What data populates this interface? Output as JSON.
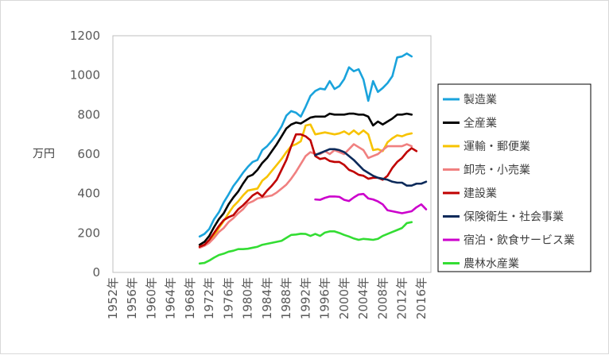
{
  "chart_data": {
    "type": "line",
    "title": "",
    "xlabel": "",
    "ylabel": "万円",
    "ylim": [
      0,
      1200
    ],
    "yticks": [
      0,
      200,
      400,
      600,
      800,
      1000,
      1200
    ],
    "xlim": [
      1952,
      2018
    ],
    "xtick_labels": [
      "1952年",
      "1956年",
      "1960年",
      "1964年",
      "1968年",
      "1972年",
      "1976年",
      "1980年",
      "1984年",
      "1988年",
      "1992年",
      "1996年",
      "2000年",
      "2004年",
      "2008年",
      "2012年",
      "2016年"
    ],
    "grid": false,
    "legend_position": "right",
    "series": [
      {
        "name": "製造業",
        "color": "#1aa3dc",
        "x_start": 1970,
        "values": [
          182,
          195,
          220,
          270,
          305,
          355,
          395,
          438,
          470,
          505,
          535,
          560,
          570,
          620,
          640,
          668,
          700,
          740,
          795,
          818,
          810,
          790,
          840,
          895,
          920,
          932,
          928,
          970,
          930,
          945,
          980,
          1040,
          1020,
          1030,
          978,
          870,
          970,
          915,
          935,
          960,
          995,
          1090,
          1095,
          1110,
          1095
        ]
      },
      {
        "name": "全産業",
        "color": "#000000",
        "x_start": 1970,
        "values": [
          140,
          155,
          185,
          230,
          270,
          300,
          345,
          380,
          410,
          450,
          485,
          495,
          520,
          555,
          580,
          615,
          650,
          690,
          730,
          750,
          760,
          755,
          770,
          785,
          790,
          790,
          790,
          805,
          800,
          800,
          800,
          805,
          805,
          800,
          800,
          790,
          745,
          765,
          750,
          765,
          780,
          800,
          800,
          805,
          800
        ]
      },
      {
        "name": "運輸・郵便業",
        "color": "#f7c300",
        "x_start": 1970,
        "values": [
          130,
          140,
          155,
          185,
          225,
          260,
          300,
          335,
          360,
          390,
          415,
          420,
          425,
          465,
          485,
          515,
          545,
          575,
          610,
          640,
          650,
          665,
          745,
          750,
          700,
          705,
          710,
          705,
          700,
          705,
          715,
          700,
          720,
          700,
          720,
          700,
          620,
          625,
          615,
          660,
          680,
          695,
          690,
          700,
          705
        ]
      },
      {
        "name": "卸売・小売業",
        "color": "#f08080",
        "x_start": 1970,
        "values": [
          125,
          135,
          150,
          175,
          205,
          225,
          255,
          275,
          300,
          320,
          350,
          360,
          375,
          380,
          385,
          390,
          405,
          425,
          445,
          475,
          510,
          550,
          590,
          610,
          600,
          600,
          615,
          600,
          620,
          610,
          600,
          625,
          650,
          635,
          620,
          580,
          590,
          600,
          620,
          640,
          640,
          640,
          640,
          650,
          640
        ]
      },
      {
        "name": "建設業",
        "color": "#c00000",
        "x_start": 1970,
        "values": [
          130,
          140,
          165,
          200,
          235,
          265,
          280,
          290,
          320,
          340,
          365,
          390,
          405,
          385,
          415,
          440,
          470,
          520,
          570,
          640,
          700,
          700,
          690,
          670,
          590,
          575,
          580,
          565,
          560,
          560,
          545,
          520,
          510,
          495,
          490,
          475,
          480,
          480,
          470,
          490,
          530,
          560,
          580,
          610,
          630,
          615
        ]
      },
      {
        "name": "保険衛生・社会事業",
        "color": "#0c2a5a",
        "x_start": 1994,
        "values": [
          595,
          605,
          615,
          625,
          625,
          620,
          610,
          590,
          570,
          545,
          520,
          505,
          490,
          480,
          475,
          470,
          460,
          455,
          455,
          440,
          440,
          450,
          450,
          460
        ]
      },
      {
        "name": "宿泊・飲食サービス業",
        "color": "#cc00cc",
        "x_start": 1994,
        "values": [
          370,
          368,
          378,
          385,
          385,
          383,
          368,
          362,
          380,
          395,
          398,
          375,
          370,
          360,
          345,
          315,
          310,
          305,
          300,
          305,
          310,
          330,
          345,
          320
        ]
      },
      {
        "name": "農林水産業",
        "color": "#33dd33",
        "x_start": 1970,
        "values": [
          45,
          48,
          60,
          75,
          88,
          95,
          105,
          110,
          118,
          118,
          120,
          125,
          130,
          140,
          145,
          150,
          155,
          160,
          175,
          190,
          192,
          196,
          195,
          185,
          195,
          185,
          202,
          208,
          208,
          200,
          190,
          182,
          172,
          165,
          170,
          168,
          165,
          170,
          185,
          195,
          205,
          215,
          225,
          250,
          255
        ]
      }
    ]
  }
}
